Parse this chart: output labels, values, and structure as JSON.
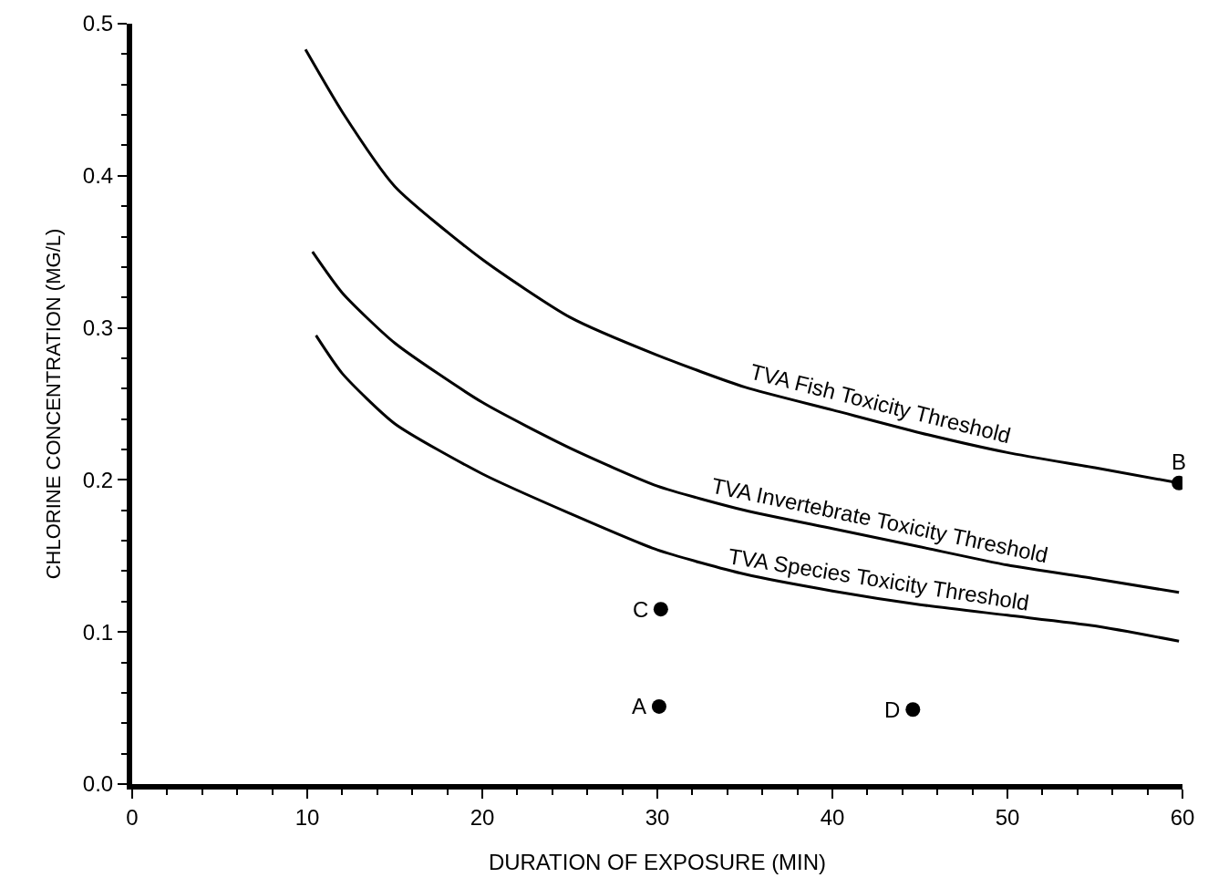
{
  "chart_data": {
    "type": "line",
    "xlabel": "DURATION OF EXPOSURE (MIN)",
    "ylabel": "CHLORINE CONCENTRATION (MG/L)",
    "xlim": [
      0,
      60
    ],
    "ylim": [
      0,
      0.5
    ],
    "xticks": [
      0,
      {
        "value": 2,
        "label": null
      },
      {
        "value": 4,
        "label": null
      },
      {
        "value": 6,
        "label": null
      },
      {
        "value": 8,
        "label": null
      },
      10,
      {
        "value": 12,
        "label": null
      },
      {
        "value": 14,
        "label": null
      },
      {
        "value": 16,
        "label": null
      },
      {
        "value": 18,
        "label": null
      },
      20,
      {
        "value": 22,
        "label": null
      },
      {
        "value": 24,
        "label": null
      },
      {
        "value": 26,
        "label": null
      },
      {
        "value": 28,
        "label": null
      },
      30,
      {
        "value": 32,
        "label": null
      },
      {
        "value": 34,
        "label": null
      },
      {
        "value": 36,
        "label": null
      },
      {
        "value": 38,
        "label": null
      },
      40,
      {
        "value": 42,
        "label": null
      },
      {
        "value": 44,
        "label": null
      },
      {
        "value": 46,
        "label": null
      },
      {
        "value": 48,
        "label": null
      },
      50,
      {
        "value": 52,
        "label": null
      },
      {
        "value": 54,
        "label": null
      },
      {
        "value": 56,
        "label": null
      },
      {
        "value": 58,
        "label": null
      },
      60
    ],
    "yticks": [
      {
        "value": 0,
        "label": "0.0"
      },
      {
        "value": 0.02,
        "label": null
      },
      {
        "value": 0.04,
        "label": null
      },
      {
        "value": 0.06,
        "label": null
      },
      {
        "value": 0.08,
        "label": null
      },
      0.1,
      {
        "value": 0.12,
        "label": null
      },
      {
        "value": 0.14,
        "label": null
      },
      {
        "value": 0.16,
        "label": null
      },
      {
        "value": 0.18,
        "label": null
      },
      0.2,
      {
        "value": 0.22,
        "label": null
      },
      {
        "value": 0.24,
        "label": null
      },
      {
        "value": 0.26,
        "label": null
      },
      {
        "value": 0.28,
        "label": null
      },
      0.3,
      {
        "value": 0.32,
        "label": null
      },
      {
        "value": 0.34,
        "label": null
      },
      {
        "value": 0.36,
        "label": null
      },
      {
        "value": 0.38,
        "label": null
      },
      0.4,
      {
        "value": 0.42,
        "label": null
      },
      {
        "value": 0.44,
        "label": null
      },
      {
        "value": 0.46,
        "label": null
      },
      {
        "value": 0.48,
        "label": null
      },
      0.5
    ],
    "legend": false,
    "line_style": "solid",
    "series": [
      {
        "name": "TVA Fish Toxicity Threshold",
        "color": "#000000",
        "x": [
          9.9,
          12,
          15,
          20,
          25,
          30,
          35,
          40,
          45,
          50,
          55,
          59.8
        ],
        "values": [
          0.483,
          0.442,
          0.393,
          0.345,
          0.307,
          0.282,
          0.261,
          0.246,
          0.231,
          0.218,
          0.208,
          0.198
        ]
      },
      {
        "name": "TVA Invertebrate Toxicity Threshold",
        "color": "#000000",
        "x": [
          10.3,
          12,
          15,
          20,
          25,
          30,
          35,
          40,
          45,
          50,
          55,
          59.8
        ],
        "values": [
          0.35,
          0.323,
          0.29,
          0.251,
          0.221,
          0.196,
          0.18,
          0.168,
          0.156,
          0.144,
          0.135,
          0.126
        ]
      },
      {
        "name": "TVA Species Toxicity Threshold",
        "color": "#000000",
        "x": [
          10.5,
          12,
          15,
          20,
          25,
          30,
          35,
          40,
          45,
          50,
          55,
          59.8
        ],
        "values": [
          0.295,
          0.27,
          0.237,
          0.204,
          0.178,
          0.154,
          0.138,
          0.127,
          0.118,
          0.111,
          0.104,
          0.094
        ]
      },
      {
        "type": "scatter",
        "marker": "circle",
        "color": "#000000",
        "x": [
          30.1,
          59.8,
          30.2,
          44.6
        ],
        "values": [
          0.051,
          0.198,
          0.115,
          0.049
        ]
      }
    ],
    "annotations": [
      {
        "text": "A",
        "x": 30.1,
        "y": 0.051
      },
      {
        "text": "B",
        "x": 59.8,
        "y": 0.198
      },
      {
        "text": "C",
        "x": 30.2,
        "y": 0.115
      },
      {
        "text": "D",
        "x": 44.6,
        "y": 0.049
      }
    ]
  }
}
